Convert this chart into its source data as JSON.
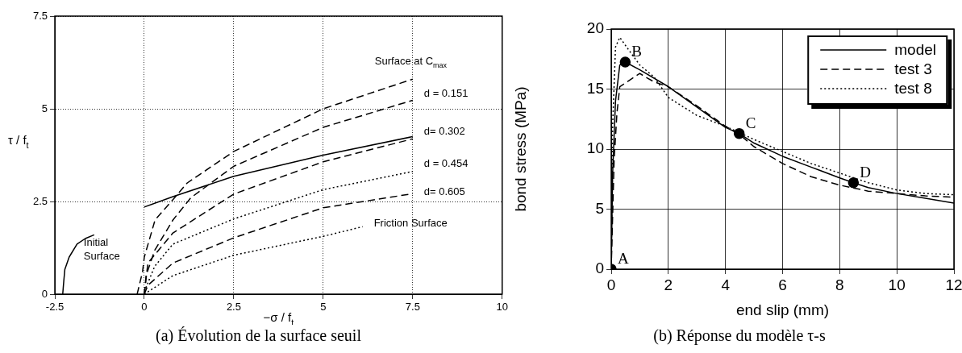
{
  "chart_data": [
    {
      "type": "line",
      "xlabel": "−σ / f$_{t}$",
      "ylabel": "τ / f$_{t}$",
      "xlim": [
        -2.5,
        10
      ],
      "ylim": [
        0,
        7.5
      ],
      "xticks": [
        -2.5,
        0,
        2.5,
        5,
        7.5,
        10
      ],
      "yticks": [
        0,
        2.5,
        5,
        7.5
      ],
      "grid": true,
      "series": [
        {
          "name": "Initial Surface",
          "color": "#000000",
          "line_style": "solid",
          "x": [
            -2.28,
            -2.25,
            -2.22,
            -2.1,
            -1.88,
            -1.65,
            -1.4,
            -0.7,
            0,
            0.8,
            2.5,
            5,
            7.5
          ],
          "values": [
            0,
            0.35,
            0.67,
            1.0,
            1.35,
            1.5,
            1.6,
            null,
            2.35,
            2.63,
            3.18,
            3.75,
            4.25
          ]
        },
        {
          "name": "Surface at C$_{max}$",
          "color": "#000000",
          "line_style": "dashed",
          "x": [
            -0.2,
            -0.05,
            0,
            0.3,
            0.8,
            1.2,
            2.5,
            5,
            7.5
          ],
          "values": [
            0,
            0.6,
            1.0,
            2.0,
            2.55,
            3.0,
            3.85,
            5.0,
            5.8
          ]
        },
        {
          "name": "d = 0.151",
          "color": "#000000",
          "line_style": "dashed",
          "x": [
            0,
            0.05,
            0.29,
            0.8,
            1.3,
            2.5,
            5,
            7.5
          ],
          "values": [
            0,
            0.5,
            1.18,
            2.0,
            2.6,
            3.45,
            4.5,
            5.23
          ]
        },
        {
          "name": "d= 0.302",
          "color": "#000000",
          "line_style": "dashed",
          "x": [
            0,
            0.1,
            0.8,
            2.5,
            5,
            7.5
          ],
          "values": [
            0,
            0.84,
            1.65,
            2.7,
            3.57,
            4.19
          ]
        },
        {
          "name": "d = 0.454",
          "color": "#000000",
          "line_style": "dotted",
          "x": [
            0,
            0.29,
            0.8,
            2.5,
            5,
            7.5
          ],
          "values": [
            0.07,
            0.75,
            1.35,
            2.03,
            2.82,
            3.31
          ]
        },
        {
          "name": "d= 0.605",
          "color": "#000000",
          "line_style": "dashed",
          "x": [
            0,
            0.1,
            0.8,
            2.5,
            5,
            7.5
          ],
          "values": [
            0,
            0.24,
            0.84,
            1.52,
            2.33,
            2.71
          ]
        },
        {
          "name": "Friction Surface",
          "color": "#000000",
          "line_style": "dotted",
          "x": [
            0,
            0.8,
            2.5,
            5,
            6.1
          ],
          "values": [
            0,
            0.5,
            1.05,
            1.56,
            1.82
          ]
        }
      ],
      "annotations": [
        "(a) Évolution de la surface seuil"
      ]
    },
    {
      "type": "line",
      "xlabel": "end slip (mm)",
      "ylabel": "bond stress (MPa)",
      "xlim": [
        0,
        12
      ],
      "ylim": [
        0,
        20
      ],
      "xticks": [
        0,
        2,
        4,
        6,
        8,
        10,
        12
      ],
      "yticks": [
        0,
        5,
        10,
        15,
        20
      ],
      "grid": true,
      "legend": "top right",
      "series": [
        {
          "name": "model",
          "color": "#000000",
          "line_style": "solid",
          "x": [
            0,
            0.05,
            0.15,
            0.3,
            0.49,
            1,
            2,
            3,
            4,
            4.48,
            5,
            6,
            7,
            8,
            8.48,
            9,
            10,
            11,
            12
          ],
          "values": [
            0,
            8,
            14,
            17,
            17.25,
            16.6,
            15.2,
            13.5,
            11.8,
            11.3,
            10.5,
            9.4,
            8.5,
            7.6,
            7.2,
            6.8,
            6.3,
            5.9,
            5.5
          ]
        },
        {
          "name": "test 3",
          "color": "#000000",
          "line_style": "dashed",
          "x": [
            0,
            0.1,
            0.2,
            0.3,
            0.5,
            0.8,
            1,
            1.2,
            1.5,
            2,
            3,
            4,
            4.5,
            5,
            6,
            7,
            8,
            9,
            10,
            11,
            12
          ],
          "values": [
            0,
            9,
            13,
            15.2,
            15.5,
            16,
            16.3,
            16,
            15.6,
            15.2,
            13.6,
            11.9,
            11.2,
            10.2,
            8.8,
            7.7,
            7.0,
            6.5,
            6.3,
            6.1,
            6.0
          ]
        },
        {
          "name": "test 8",
          "color": "#000000",
          "line_style": "dotted",
          "x": [
            0,
            0.05,
            0.15,
            0.3,
            0.6,
            1,
            1.5,
            2,
            3,
            4,
            5,
            6,
            7,
            8,
            9,
            10,
            11,
            12
          ],
          "values": [
            0,
            12,
            18.5,
            19.3,
            18.3,
            17,
            16,
            14.3,
            12.8,
            11.9,
            10.8,
            9.8,
            8.8,
            8,
            7.2,
            6.6,
            6.3,
            6.2
          ]
        },
        {
          "type": "scatter",
          "marker": "circle",
          "color": "#000000",
          "x": [
            0,
            0.49,
            4.48,
            8.48
          ],
          "values": [
            0,
            17.25,
            11.3,
            7.2
          ]
        }
      ],
      "annotations": [
        {
          "text": "A",
          "x": 0,
          "y": 0
        },
        {
          "text": "B",
          "x": 0.49,
          "y": 17.25
        },
        {
          "text": "C",
          "x": 4.48,
          "y": 11.3
        },
        {
          "text": "D",
          "x": 8.48,
          "y": 7.2
        },
        "(b) Réponse du modèle τ-s"
      ]
    }
  ]
}
